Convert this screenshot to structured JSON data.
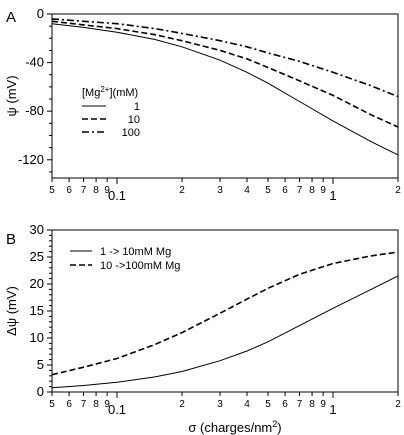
{
  "chart_data": [
    {
      "type": "line",
      "panel": "A",
      "x_scale": "log",
      "xlim": [
        0.05,
        2.0
      ],
      "ylim": [
        -135,
        0
      ],
      "ylabel": "ψ (mV)",
      "xlabel": "",
      "y_ticks": [
        0,
        -40,
        -80,
        -120
      ],
      "x_ticks": [
        {
          "v": 0.05,
          "label": "5",
          "major": false
        },
        {
          "v": 0.06,
          "label": "6",
          "major": false
        },
        {
          "v": 0.07,
          "label": "7",
          "major": false
        },
        {
          "v": 0.08,
          "label": "8",
          "major": false
        },
        {
          "v": 0.09,
          "label": "9",
          "major": false
        },
        {
          "v": 0.1,
          "label": "0.1",
          "major": true
        },
        {
          "v": 0.2,
          "label": "2",
          "major": false
        },
        {
          "v": 0.3,
          "label": "3",
          "major": false
        },
        {
          "v": 0.4,
          "label": "4",
          "major": false
        },
        {
          "v": 0.5,
          "label": "5",
          "major": false
        },
        {
          "v": 0.6,
          "label": "6",
          "major": false
        },
        {
          "v": 0.7,
          "label": "7",
          "major": false
        },
        {
          "v": 0.8,
          "label": "8",
          "major": false
        },
        {
          "v": 0.9,
          "label": "9",
          "major": false
        },
        {
          "v": 1.0,
          "label": "1",
          "major": true
        },
        {
          "v": 2.0,
          "label": "2",
          "major": false
        }
      ],
      "legend_title": "[Mg2+](mM)",
      "legend_position": "left",
      "series": [
        {
          "name": "1",
          "dash": "solid",
          "x": [
            0.05,
            0.07,
            0.1,
            0.15,
            0.2,
            0.3,
            0.4,
            0.5,
            0.7,
            1.0,
            1.5,
            2.0
          ],
          "y": [
            -8,
            -11,
            -15,
            -21,
            -27,
            -38,
            -48,
            -57,
            -72,
            -88,
            -105,
            -116
          ]
        },
        {
          "name": "10",
          "dash": "dashed",
          "x": [
            0.05,
            0.07,
            0.1,
            0.15,
            0.2,
            0.3,
            0.4,
            0.5,
            0.7,
            1.0,
            1.5,
            2.0
          ],
          "y": [
            -6,
            -9,
            -12,
            -17,
            -22,
            -30,
            -37,
            -44,
            -55,
            -67,
            -83,
            -93
          ]
        },
        {
          "name": "100",
          "dash": "dashdot",
          "x": [
            0.05,
            0.07,
            0.1,
            0.15,
            0.2,
            0.3,
            0.4,
            0.5,
            0.7,
            1.0,
            1.5,
            2.0
          ],
          "y": [
            -4,
            -6,
            -8,
            -12,
            -16,
            -22,
            -27,
            -32,
            -39,
            -48,
            -59,
            -68
          ]
        }
      ]
    },
    {
      "type": "line",
      "panel": "B",
      "x_scale": "log",
      "xlim": [
        0.05,
        2.0
      ],
      "ylim": [
        0,
        30
      ],
      "ylabel": "Δψ (mV)",
      "xlabel": "σ (charges/nm2)",
      "y_ticks": [
        0,
        5,
        10,
        15,
        20,
        25,
        30
      ],
      "x_ticks": [
        {
          "v": 0.05,
          "label": "5",
          "major": false
        },
        {
          "v": 0.06,
          "label": "6",
          "major": false
        },
        {
          "v": 0.07,
          "label": "7",
          "major": false
        },
        {
          "v": 0.08,
          "label": "8",
          "major": false
        },
        {
          "v": 0.09,
          "label": "9",
          "major": false
        },
        {
          "v": 0.1,
          "label": "0.1",
          "major": true
        },
        {
          "v": 0.2,
          "label": "2",
          "major": false
        },
        {
          "v": 0.3,
          "label": "3",
          "major": false
        },
        {
          "v": 0.4,
          "label": "4",
          "major": false
        },
        {
          "v": 0.5,
          "label": "5",
          "major": false
        },
        {
          "v": 0.6,
          "label": "6",
          "major": false
        },
        {
          "v": 0.7,
          "label": "7",
          "major": false
        },
        {
          "v": 0.8,
          "label": "8",
          "major": false
        },
        {
          "v": 0.9,
          "label": "9",
          "major": false
        },
        {
          "v": 1.0,
          "label": "1",
          "major": true
        },
        {
          "v": 2.0,
          "label": "2",
          "major": false
        }
      ],
      "legend_position": "top-left",
      "series": [
        {
          "name": "1 -> 10mM Mg",
          "dash": "solid",
          "x": [
            0.05,
            0.07,
            0.1,
            0.15,
            0.2,
            0.3,
            0.4,
            0.5,
            0.7,
            1.0,
            1.5,
            2.0
          ],
          "y": [
            0.8,
            1.2,
            1.8,
            2.8,
            3.8,
            5.8,
            7.6,
            9.3,
            12.3,
            15.5,
            19.0,
            21.5
          ]
        },
        {
          "name": "10 ->100mM Mg",
          "dash": "dashed",
          "x": [
            0.05,
            0.07,
            0.1,
            0.15,
            0.2,
            0.3,
            0.4,
            0.5,
            0.7,
            1.0,
            1.5,
            2.0
          ],
          "y": [
            3.2,
            4.6,
            6.2,
            8.8,
            11.0,
            14.6,
            17.2,
            19.2,
            21.8,
            23.8,
            25.2,
            25.9
          ]
        }
      ]
    }
  ]
}
